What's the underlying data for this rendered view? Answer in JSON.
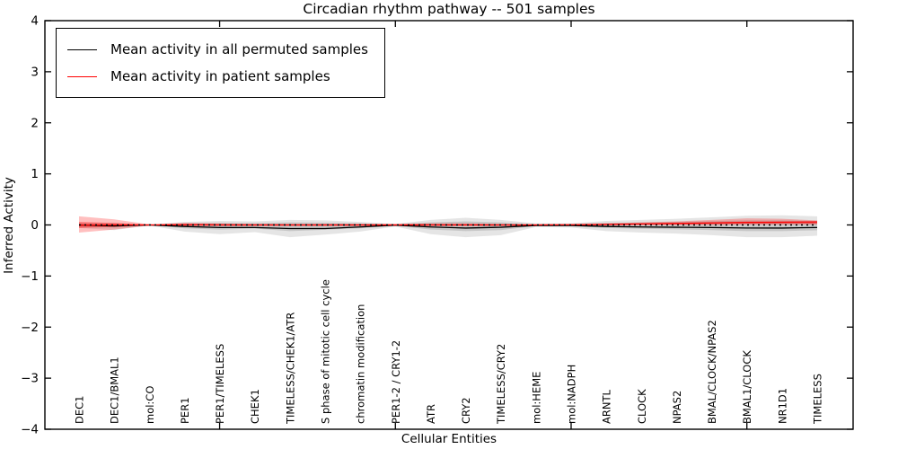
{
  "legend": {
    "items": [
      {
        "label": "Mean activity in all permuted samples",
        "color": "#000000"
      },
      {
        "label": "Mean activity in patient samples",
        "color": "#ff0000"
      }
    ]
  },
  "chart_data": {
    "type": "line",
    "title": "Circadian rhythm pathway -- 501 samples",
    "xlabel": "Cellular Entities",
    "ylabel": "Inferred Activity",
    "ylim": [
      -4,
      4
    ],
    "grid": false,
    "legend_position": "upper left",
    "y_ticks": [
      {
        "value": 4,
        "label": "4"
      },
      {
        "value": 3,
        "label": "3"
      },
      {
        "value": 2,
        "label": "2"
      },
      {
        "value": 1,
        "label": "1"
      },
      {
        "value": 0,
        "label": "0"
      },
      {
        "value": -1,
        "label": "−1"
      },
      {
        "value": -2,
        "label": "−2"
      },
      {
        "value": -3,
        "label": "−3"
      },
      {
        "value": -4,
        "label": "−4"
      }
    ],
    "x_tick_category_indices": [
      4,
      9,
      14,
      19
    ],
    "categories": [
      "DEC1",
      "DEC1/BMAL1",
      "mol:CO",
      "PER1",
      "PER1/TIMELESS",
      "CHEK1",
      "TIMELESS/CHEK1/ATR",
      "S phase of mitotic cell cycle",
      "chromatin modification",
      "PER1-2 / CRY1-2",
      "ATR",
      "CRY2",
      "TIMELESS/CRY2",
      "mol:HEME",
      "mol:NADPH",
      "ARNTL",
      "CLOCK",
      "NPAS2",
      "BMAL/CLOCK/NPAS2",
      "BMAL1/CLOCK",
      "NR1D1",
      "TIMELESS"
    ],
    "series": [
      {
        "name": "Mean activity in all permuted samples",
        "color": "#000000",
        "style": "solid",
        "values": [
          0.0,
          -0.02,
          0.0,
          -0.03,
          -0.05,
          -0.05,
          -0.07,
          -0.07,
          -0.04,
          -0.005,
          -0.04,
          -0.06,
          -0.045,
          -0.01,
          -0.01,
          -0.03,
          -0.04,
          -0.045,
          -0.05,
          -0.06,
          -0.06,
          -0.05
        ]
      },
      {
        "name": "Mean activity in patient samples",
        "color": "#ff0000",
        "style": "solid",
        "values": [
          -0.005,
          0.0,
          0.0,
          0.005,
          0.0,
          0.0,
          0.0,
          0.0,
          0.0,
          0.0,
          0.0,
          0.0,
          0.0,
          0.0,
          0.005,
          0.01,
          0.02,
          0.03,
          0.04,
          0.05,
          0.055,
          0.06
        ]
      },
      {
        "name": "zero reference",
        "color": "#000000",
        "style": "dotted",
        "values": [
          0,
          0,
          0,
          0,
          0,
          0,
          0,
          0,
          0,
          0,
          0,
          0,
          0,
          0,
          0,
          0,
          0,
          0,
          0,
          0,
          0,
          0
        ]
      }
    ],
    "bands": [
      {
        "name": "permuted spread (outer)",
        "color": "#000000",
        "opacity": 0.1,
        "upper": [
          0.04,
          0.04,
          0.005,
          0.06,
          0.08,
          0.07,
          0.1,
          0.09,
          0.06,
          0.02,
          0.1,
          0.14,
          0.1,
          0.03,
          0.03,
          0.08,
          0.1,
          0.12,
          0.15,
          0.18,
          0.19,
          0.17
        ],
        "lower": [
          -0.06,
          -0.1,
          -0.01,
          -0.13,
          -0.18,
          -0.14,
          -0.24,
          -0.19,
          -0.13,
          -0.03,
          -0.18,
          -0.24,
          -0.2,
          -0.04,
          -0.05,
          -0.12,
          -0.15,
          -0.17,
          -0.2,
          -0.24,
          -0.24,
          -0.21
        ]
      },
      {
        "name": "permuted spread (inner)",
        "color": "#000000",
        "opacity": 0.13,
        "upper": [
          0.02,
          0.02,
          0.003,
          0.03,
          0.04,
          0.035,
          0.05,
          0.045,
          0.03,
          0.01,
          0.05,
          0.07,
          0.05,
          0.015,
          0.015,
          0.04,
          0.05,
          0.06,
          0.075,
          0.09,
          0.09,
          0.08
        ],
        "lower": [
          -0.03,
          -0.05,
          -0.005,
          -0.065,
          -0.09,
          -0.07,
          -0.12,
          -0.095,
          -0.065,
          -0.015,
          -0.09,
          -0.12,
          -0.1,
          -0.02,
          -0.025,
          -0.06,
          -0.075,
          -0.085,
          -0.1,
          -0.12,
          -0.12,
          -0.105
        ]
      },
      {
        "name": "patient spread (outer)",
        "color": "#ff0000",
        "opacity": 0.25,
        "upper": [
          0.17,
          0.11,
          0.01,
          0.04,
          0.03,
          0.02,
          0.02,
          0.02,
          0.02,
          0.02,
          0.03,
          0.03,
          0.02,
          0.01,
          0.01,
          0.03,
          0.05,
          0.07,
          0.1,
          0.13,
          0.12,
          0.09
        ],
        "lower": [
          -0.15,
          -0.09,
          -0.01,
          -0.02,
          -0.02,
          -0.02,
          -0.02,
          -0.02,
          -0.02,
          -0.02,
          -0.02,
          -0.02,
          -0.02,
          -0.01,
          -0.01,
          -0.005,
          0.0,
          0.0,
          0.0,
          0.01,
          0.01,
          0.01
        ]
      },
      {
        "name": "patient spread (inner)",
        "color": "#ff0000",
        "opacity": 0.35,
        "upper": [
          0.06,
          0.04,
          0.005,
          0.02,
          0.015,
          0.01,
          0.01,
          0.01,
          0.01,
          0.01,
          0.015,
          0.015,
          0.01,
          0.005,
          0.005,
          0.015,
          0.025,
          0.035,
          0.05,
          0.065,
          0.06,
          0.05
        ],
        "lower": [
          -0.06,
          -0.04,
          -0.005,
          -0.01,
          -0.01,
          -0.01,
          -0.01,
          -0.01,
          -0.01,
          -0.01,
          -0.01,
          -0.01,
          -0.01,
          -0.005,
          -0.005,
          0.0,
          0.005,
          0.01,
          0.015,
          0.02,
          0.02,
          0.02
        ]
      }
    ]
  }
}
